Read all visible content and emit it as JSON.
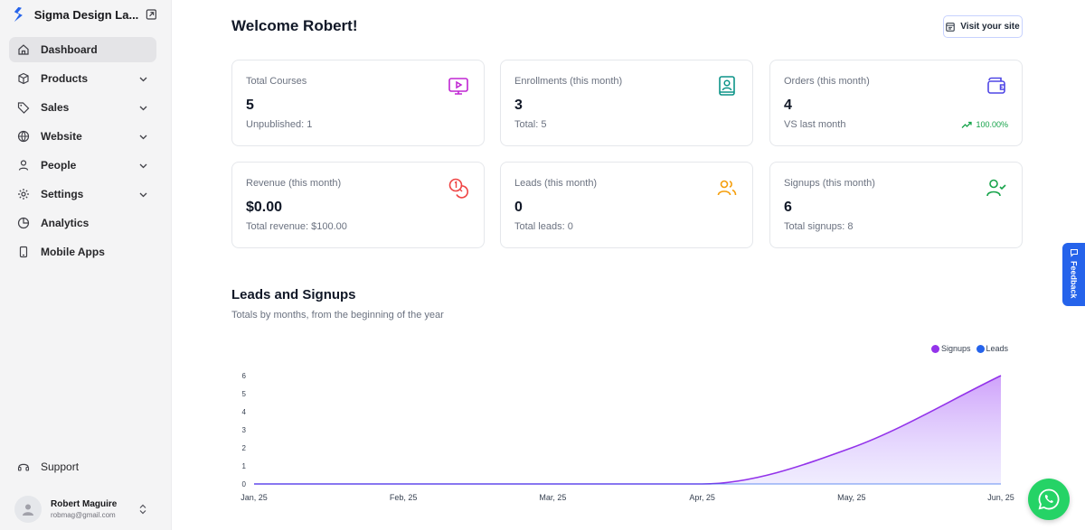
{
  "sidebar": {
    "brand_name": "Sigma Design La...",
    "items": [
      {
        "label": "Dashboard",
        "icon": "home-icon",
        "active": true
      },
      {
        "label": "Products",
        "icon": "box-icon",
        "expandable": true
      },
      {
        "label": "Sales",
        "icon": "tag-icon",
        "expandable": true
      },
      {
        "label": "Website",
        "icon": "globe-icon",
        "expandable": true
      },
      {
        "label": "People",
        "icon": "user-icon",
        "expandable": true
      },
      {
        "label": "Settings",
        "icon": "gear-icon",
        "expandable": true
      },
      {
        "label": "Analytics",
        "icon": "pie-chart-icon"
      },
      {
        "label": "Mobile Apps",
        "icon": "mobile-icon"
      }
    ],
    "support_label": "Support",
    "user": {
      "name": "Robert Maguire",
      "email": "robmag@gmail.com"
    }
  },
  "header": {
    "title": "Welcome Robert!",
    "visit_label": "Visit your site"
  },
  "stats": [
    {
      "title": "Total Courses",
      "value": "5",
      "sub": "Unpublished: 1",
      "icon": "monitor-play-icon",
      "color": "#c026d3"
    },
    {
      "title": "Enrollments (this month)",
      "value": "3",
      "sub": "Total: 5",
      "icon": "contact-book-icon",
      "color": "#0d9488"
    },
    {
      "title": "Orders (this month)",
      "value": "4",
      "sub": "VS last month",
      "trend": "100.00%",
      "icon": "wallet-icon",
      "color": "#4f46e5"
    },
    {
      "title": "Revenue (this month)",
      "value": "$0.00",
      "sub": "Total revenue: $100.00",
      "icon": "coins-icon",
      "color": "#ef4444"
    },
    {
      "title": "Leads (this month)",
      "value": "0",
      "sub": "Total leads: 0",
      "icon": "users-icon",
      "color": "#f59e0b"
    },
    {
      "title": "Signups (this month)",
      "value": "6",
      "sub": "Total signups: 8",
      "icon": "user-check-icon",
      "color": "#16a34a"
    }
  ],
  "section": {
    "title": "Leads and Signups",
    "subtitle": "Totals by months, from the beginning of the year"
  },
  "feedback_label": "Feedback",
  "colors": {
    "signups": "#9333ea",
    "leads": "#2563eb"
  },
  "chart_data": {
    "type": "area",
    "categories": [
      "Jan, 25",
      "Feb, 25",
      "Mar, 25",
      "Apr, 25",
      "May, 25",
      "Jun, 25"
    ],
    "series": [
      {
        "name": "Signups",
        "values": [
          0,
          0,
          0,
          0,
          2,
          6
        ]
      },
      {
        "name": "Leads",
        "values": [
          0,
          0,
          0,
          0,
          0,
          0
        ]
      }
    ],
    "ylim": [
      0,
      6
    ],
    "yticks": [
      0,
      1,
      2,
      3,
      4,
      5,
      6
    ],
    "legend": "top-right",
    "grid": false
  }
}
